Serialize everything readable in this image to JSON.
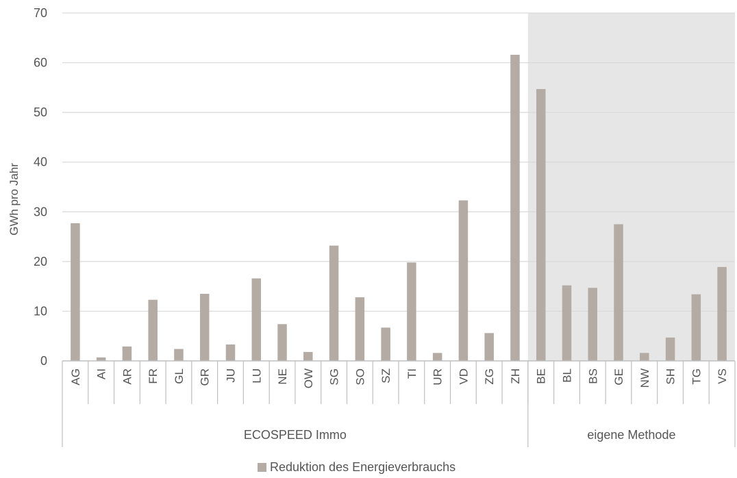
{
  "chart_data": {
    "type": "bar",
    "title": "",
    "xlabel": "",
    "ylabel": "GWh pro Jahr",
    "ylim": [
      0,
      70
    ],
    "yticks": [
      0,
      10,
      20,
      30,
      40,
      50,
      60,
      70
    ],
    "grid": true,
    "legend_position": "bottom",
    "categories": [
      "AG",
      "AI",
      "AR",
      "FR",
      "GL",
      "GR",
      "JU",
      "LU",
      "NE",
      "OW",
      "SG",
      "SO",
      "SZ",
      "TI",
      "UR",
      "VD",
      "ZG",
      "ZH",
      "BE",
      "BL",
      "BS",
      "GE",
      "NW",
      "SH",
      "TG",
      "VS"
    ],
    "groups": [
      {
        "label": "ECOSPEED Immo",
        "count": 18,
        "shaded": false
      },
      {
        "label": "eigene Methode",
        "count": 8,
        "shaded": true
      }
    ],
    "series": [
      {
        "name": "Reduktion des Energieverbrauchs",
        "color": "#b3aba4",
        "values": [
          27.7,
          0.7,
          2.9,
          12.3,
          2.4,
          13.5,
          3.3,
          16.6,
          7.4,
          1.8,
          23.2,
          12.8,
          6.7,
          19.8,
          1.6,
          32.3,
          5.6,
          61.6,
          54.7,
          15.2,
          14.7,
          27.5,
          1.6,
          4.7,
          13.4,
          18.9
        ]
      }
    ],
    "colors": {
      "grid": "#d9d9d9",
      "shade": "#e6e6e6",
      "text": "#555555",
      "axis": "#bfbfbf"
    }
  }
}
